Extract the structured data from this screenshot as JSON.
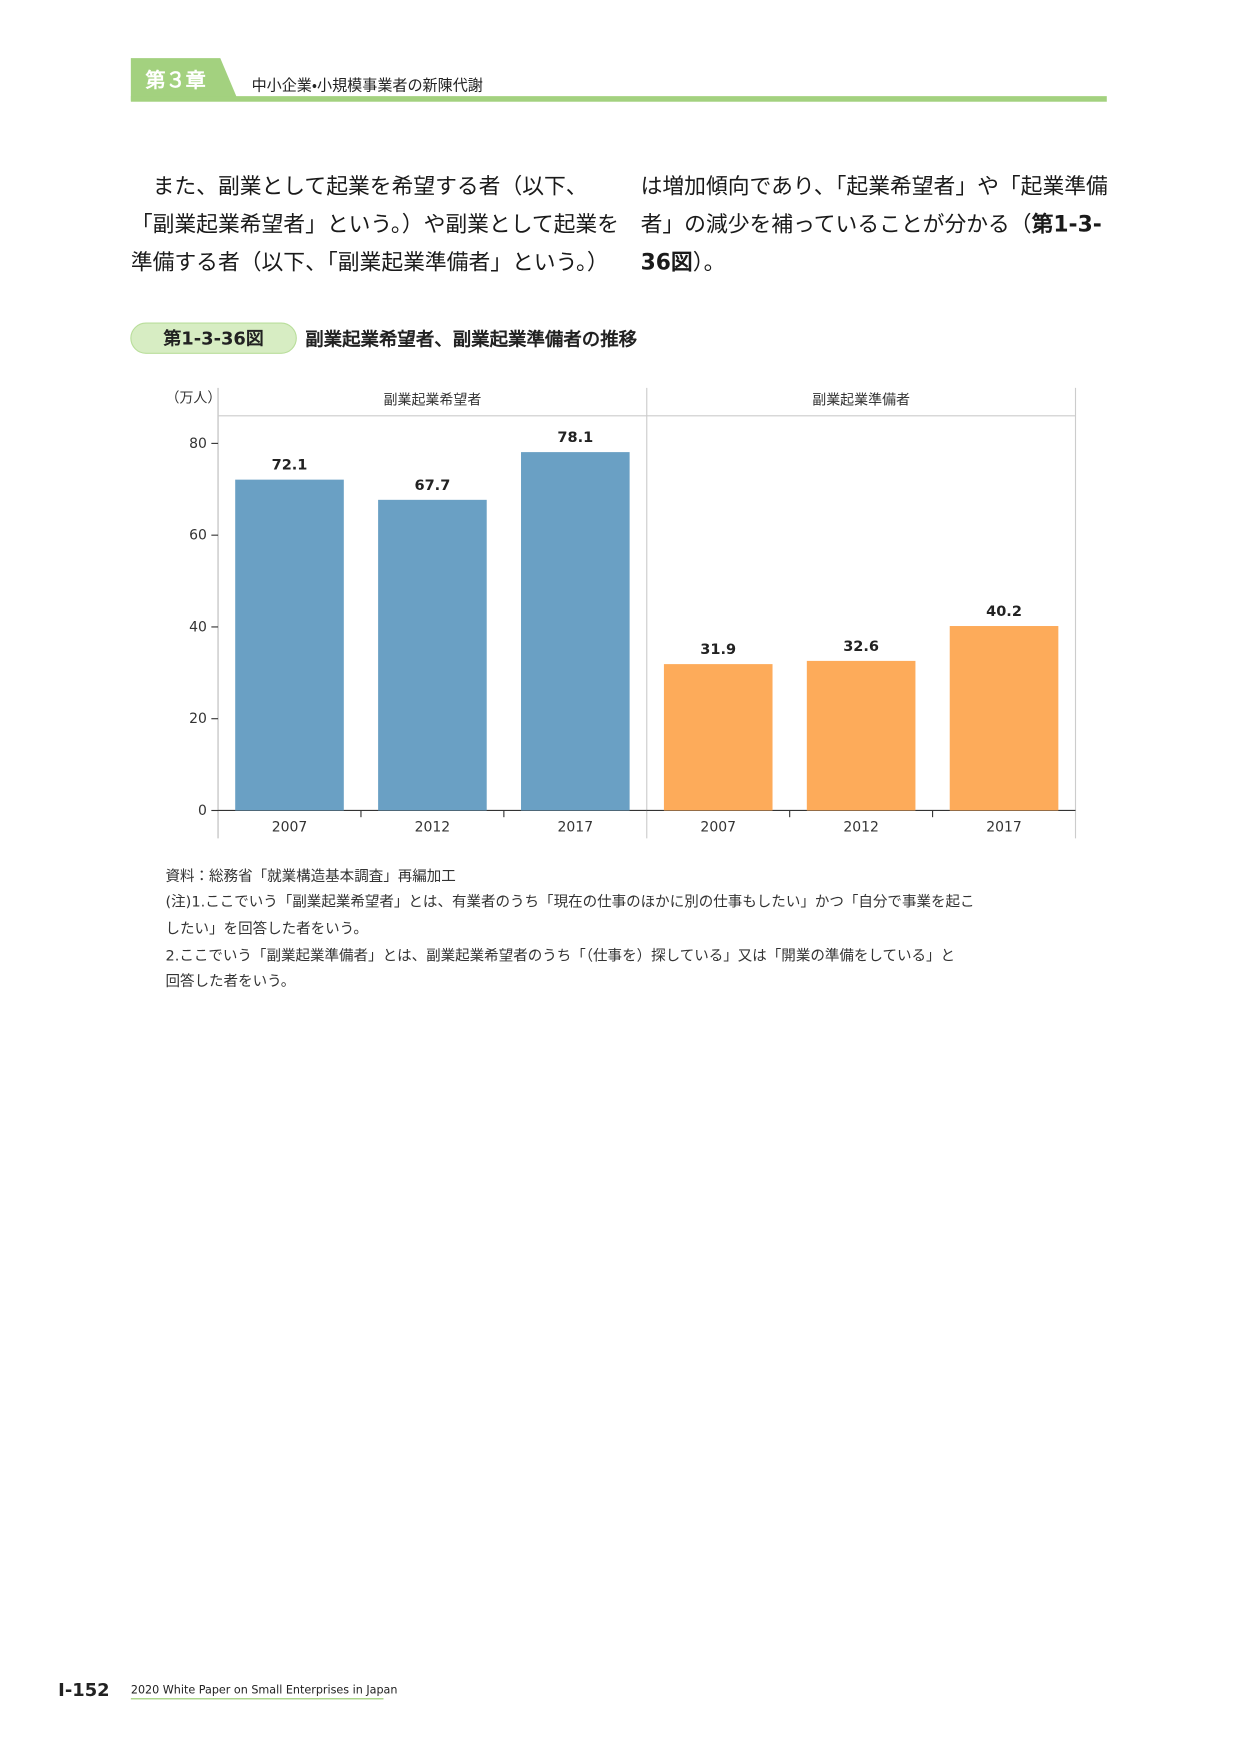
{
  "header": {
    "chapter": "第３章",
    "title": "中小企業・小規模事業者の新陳代謝"
  },
  "body": {
    "left": [
      "　また、副業として起業を希望する者（以下、",
      "「副業起業希望者」という。）や副業として起業を",
      "準備する者（以下、「副業起業準備者」という。）"
    ],
    "right": [
      [
        "は増加傾向であり、「起業希望者」や「起業準備"
      ],
      [
        "者」の減少を補っていることが分かる（",
        "第1-3-"
      ],
      [
        "36図",
        "）。"
      ]
    ]
  },
  "figure": {
    "number": "第1-3-36図",
    "title": "副業起業希望者、副業起業準備者の推移"
  },
  "chart_data": {
    "type": "bar",
    "y_label": "（万人）",
    "ylim": [
      0,
      86
    ],
    "yticks": [
      0,
      20,
      40,
      60,
      80
    ],
    "grid": false,
    "panels": [
      {
        "title": "副業起業希望者",
        "categories": [
          "2007",
          "2012",
          "2017"
        ],
        "values": [
          72.1,
          67.7,
          78.1
        ],
        "color": "#6aa0c4"
      },
      {
        "title": "副業起業準備者",
        "categories": [
          "2007",
          "2012",
          "2017"
        ],
        "values": [
          31.9,
          32.6,
          40.2
        ],
        "color": "#fdab5a"
      }
    ]
  },
  "notes": [
    "資料：総務省「就業構造基本調査」再編加工",
    "(注)1.ここでいう「副業起業希望者」とは、有業者のうち「現在の仕事のほかに別の仕事もしたい」かつ「自分で事業を起こ",
    "したい」を回答した者をいう。",
    "2.ここでいう「副業起業準備者」とは、副業起業希望者のうち「（仕事を）探している」又は「開業の準備をしている」と",
    "回答した者をいう。"
  ],
  "footer": {
    "page": "Ⅰ-152",
    "publication": "2020 White Paper on Small Enterprises in Japan"
  }
}
